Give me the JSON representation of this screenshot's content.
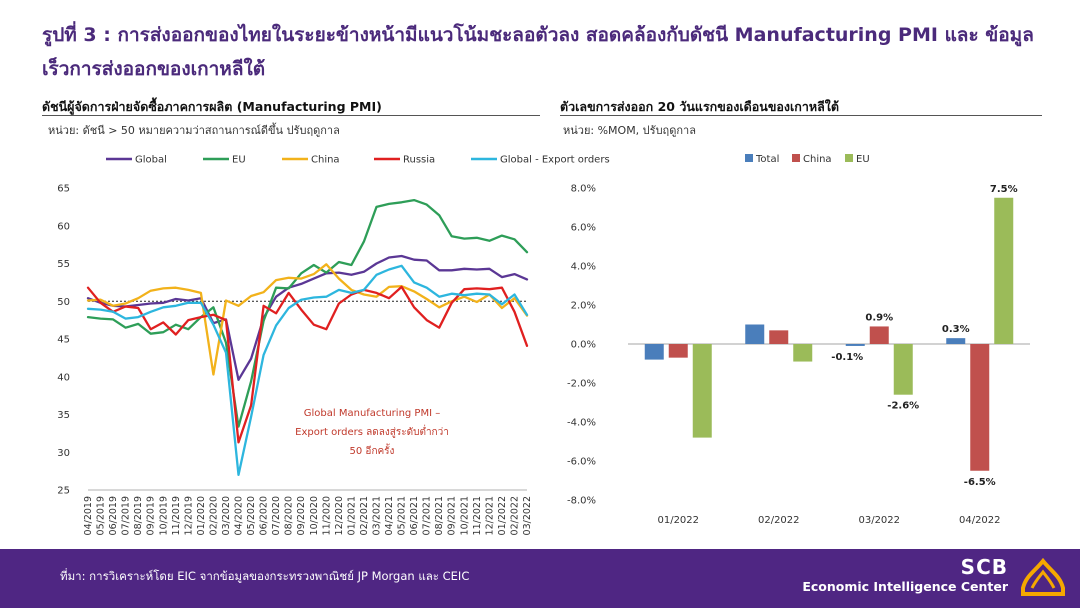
{
  "page_title": "รูปที่ 3 : การส่งออกของไทยในระยะข้างหน้ามีแนวโน้มชะลอตัวลง สอดคล้องกับดัชนี Manufacturing PMI และ ข้อมูลเร็วการส่งออกของเกาหลีใต้",
  "footer": {
    "source": "ที่มา: การวิเคราะห์โดย EIC จากข้อมูลของกระทรวงพาณิชย์ JP Morgan และ CEIC",
    "brand_line1": "SCB",
    "brand_line2": "Economic Intelligence Center"
  },
  "colors": {
    "purple": "#4f2683",
    "gold": "#f5a800",
    "global": "#5b3795",
    "eu": "#2e9e58",
    "china": "#f2b21b",
    "russia": "#e02020",
    "export_orders": "#2db6de",
    "bar_total": "#4a7ebb",
    "bar_china": "#c0504d",
    "bar_eu": "#9bbb59"
  },
  "left_panel": {
    "title": "ดัชนีผู้จัดการฝ่ายจัดซื้อภาคการผลิต (Manufacturing PMI)",
    "unit": "หน่วย: ดัชนี > 50 หมายความว่าสถานการณ์ดีขึ้น ปรับฤดูกาล"
  },
  "right_panel": {
    "title": "ตัวเลขการส่งออก 20 วันแรกของเดือนของเกาหลีใต้",
    "unit": "หน่วย: %MOM, ปรับฤดูกาล"
  },
  "chart_data": [
    {
      "type": "line",
      "ylim": [
        25,
        65
      ],
      "yticks": [
        25,
        30,
        35,
        40,
        45,
        50,
        55,
        60,
        65
      ],
      "reference_line": 50,
      "grid": false,
      "legend_position": "top",
      "x": [
        "04/2019",
        "05/2019",
        "06/2019",
        "07/2019",
        "08/2019",
        "09/2019",
        "10/2019",
        "11/2019",
        "12/2019",
        "01/2020",
        "02/2020",
        "03/2020",
        "04/2020",
        "05/2020",
        "06/2020",
        "07/2020",
        "08/2020",
        "09/2020",
        "10/2020",
        "11/2020",
        "12/2020",
        "01/2021",
        "02/2021",
        "03/2021",
        "04/2021",
        "05/2021",
        "06/2021",
        "07/2021",
        "08/2021",
        "09/2021",
        "10/2021",
        "11/2021",
        "12/2021",
        "01/2022",
        "02/2022",
        "03/2022"
      ],
      "annotation": [
        "Global Manufacturing PMI –",
        "Export orders ลดลงสู่ระดับต่ำกว่า",
        "50 อีกครั้ง"
      ],
      "series": [
        {
          "name": "Global",
          "color_key": "global",
          "values": [
            50.4,
            49.8,
            49.4,
            49.3,
            49.5,
            49.7,
            49.8,
            50.3,
            50.1,
            50.4,
            47.1,
            47.6,
            39.6,
            42.4,
            47.8,
            50.6,
            51.8,
            52.3,
            53.0,
            53.7,
            53.8,
            53.5,
            53.9,
            55.0,
            55.8,
            56.0,
            55.5,
            55.4,
            54.1,
            54.1,
            54.3,
            54.2,
            54.3,
            53.2,
            53.6,
            52.9
          ]
        },
        {
          "name": "EU",
          "color_key": "eu",
          "values": [
            47.9,
            47.7,
            47.6,
            46.5,
            47.0,
            45.7,
            45.9,
            46.9,
            46.3,
            47.9,
            49.2,
            44.5,
            33.4,
            39.4,
            47.4,
            51.8,
            51.7,
            53.7,
            54.8,
            53.8,
            55.2,
            54.8,
            57.9,
            62.5,
            62.9,
            63.1,
            63.4,
            62.8,
            61.4,
            58.6,
            58.3,
            58.4,
            58.0,
            58.7,
            58.2,
            56.5
          ]
        },
        {
          "name": "China",
          "color_key": "china",
          "values": [
            50.1,
            50.2,
            49.4,
            49.7,
            50.4,
            51.4,
            51.7,
            51.8,
            51.5,
            51.1,
            40.3,
            50.1,
            49.4,
            50.7,
            51.2,
            52.8,
            53.1,
            53.0,
            53.6,
            54.9,
            53.0,
            51.5,
            50.9,
            50.6,
            51.9,
            52.0,
            51.3,
            50.3,
            49.2,
            50.0,
            50.6,
            49.9,
            50.9,
            49.1,
            50.4,
            48.1
          ]
        },
        {
          "name": "Russia",
          "color_key": "russia",
          "values": [
            51.8,
            49.8,
            48.6,
            49.3,
            49.1,
            46.3,
            47.2,
            45.6,
            47.5,
            47.9,
            48.2,
            47.5,
            31.3,
            36.2,
            49.4,
            48.4,
            51.1,
            48.9,
            46.9,
            46.3,
            49.7,
            50.9,
            51.5,
            51.1,
            50.4,
            51.9,
            49.2,
            47.5,
            46.5,
            49.8,
            51.6,
            51.7,
            51.6,
            51.8,
            48.6,
            44.1
          ]
        },
        {
          "name": "Global - Export orders",
          "color_key": "export_orders",
          "values": [
            49.0,
            48.9,
            48.6,
            47.7,
            47.9,
            48.6,
            49.2,
            49.4,
            49.8,
            49.8,
            46.9,
            43.2,
            27.0,
            34.7,
            42.9,
            46.8,
            49.1,
            50.2,
            50.5,
            50.6,
            51.5,
            51.1,
            51.5,
            53.5,
            54.2,
            54.7,
            52.5,
            51.8,
            50.6,
            51.0,
            50.8,
            51.0,
            50.9,
            49.6,
            50.9,
            48.2
          ]
        }
      ]
    },
    {
      "type": "bar",
      "ylim": [
        -8,
        8
      ],
      "yticks": [
        "8.0%",
        "6.0%",
        "4.0%",
        "2.0%",
        "0.0%",
        "-2.0%",
        "-4.0%",
        "-6.0%",
        "-8.0%"
      ],
      "grid": false,
      "legend_position": "top",
      "categories": [
        "01/2022",
        "02/2022",
        "03/2022",
        "04/2022"
      ],
      "series": [
        {
          "name": "Total",
          "color_key": "bar_total",
          "values": [
            -0.8,
            1.0,
            -0.1,
            0.3
          ],
          "labels": [
            "",
            "",
            "-0.1%",
            "0.3%"
          ]
        },
        {
          "name": "China",
          "color_key": "bar_china",
          "values": [
            -0.7,
            0.7,
            0.9,
            -6.5
          ],
          "labels": [
            "",
            "",
            "0.9%",
            "-6.5%"
          ]
        },
        {
          "name": "EU",
          "color_key": "bar_eu",
          "values": [
            -4.8,
            -0.9,
            -2.6,
            7.5
          ],
          "labels": [
            "",
            "",
            "-2.6%",
            "7.5%"
          ]
        }
      ]
    }
  ]
}
